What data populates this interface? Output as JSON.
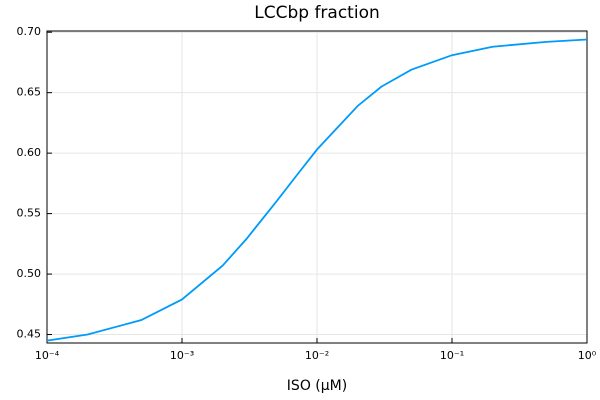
{
  "chart_data": {
    "type": "line",
    "title": "LCCbp fraction",
    "x_label": "ISO (μM)",
    "x": [
      0.0001,
      0.0002,
      0.0005,
      0.001,
      0.002,
      0.003,
      0.005,
      0.007,
      0.01,
      0.02,
      0.03,
      0.05,
      0.1,
      0.2,
      0.5,
      1
    ],
    "series": [
      {
        "color": "#009af9",
        "values": [
          0.445,
          0.45,
          0.462,
          0.479,
          0.507,
          0.529,
          0.56,
          0.581,
          0.603,
          0.639,
          0.655,
          0.669,
          0.681,
          0.688,
          0.692,
          0.694
        ]
      }
    ],
    "x_log": true,
    "xlim": [
      0.0001,
      1
    ],
    "xticks": [
      {
        "value": 0.0001,
        "label": "10⁻⁴"
      },
      {
        "value": 0.001,
        "label": "10⁻³"
      },
      {
        "value": 0.01,
        "label": "10⁻²"
      },
      {
        "value": 0.1,
        "label": "10⁻¹"
      },
      {
        "value": 1,
        "label": "10⁰"
      }
    ],
    "ylim": [
      0.443,
      0.701
    ],
    "yticks": [
      0.45,
      {
        "value": 0.5,
        "label": "0.50"
      },
      0.55,
      {
        "value": 0.6,
        "label": "0.60"
      },
      0.65,
      {
        "value": 0.7,
        "label": "0.70"
      }
    ],
    "grid": true
  }
}
